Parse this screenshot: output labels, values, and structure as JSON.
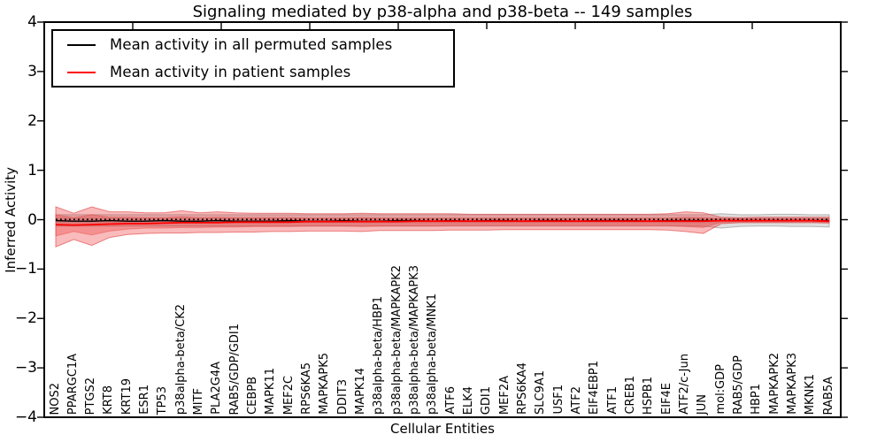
{
  "chart_data": {
    "type": "area",
    "title": "Signaling mediated by p38-alpha and p38-beta -- 149 samples",
    "xlabel": "Cellular Entities",
    "ylabel": "Inferred Activity",
    "ylim": [
      -4,
      4
    ],
    "y_tick_values": [
      4,
      3,
      2,
      1,
      0,
      -1,
      -2,
      -3,
      -4
    ],
    "y_tick_labels": [
      "4",
      "3",
      "2",
      "1",
      "0",
      "−1",
      "−2",
      "−3",
      "−4"
    ],
    "grid": false,
    "legend": {
      "position": "upper left",
      "items": [
        {
          "label": "Mean activity in all permuted samples",
          "color": "#000000"
        },
        {
          "label": "Mean activity in patient samples",
          "color": "#ff0000"
        }
      ]
    },
    "categories": [
      "NOS2",
      "PPARGC1A",
      "PTGS2",
      "KRT8",
      "KRT19",
      "ESR1",
      "TP53",
      "p38alpha-beta/CK2",
      "MITF",
      "PLA2G4A",
      "RAB5/GDP/GDI1",
      "CEBPB",
      "MAPK11",
      "MEF2C",
      "RPS6KA5",
      "MAPKAPK5",
      "DDIT3",
      "MAPK14",
      "p38alpha-beta/HBP1",
      "p38alpha-beta/MAPKAPK2",
      "p38alpha-beta/MAPKAPK3",
      "p38alpha-beta/MNK1",
      "ATF6",
      "ELK4",
      "GDI1",
      "MEF2A",
      "RPS6KA4",
      "SLC9A1",
      "USF1",
      "ATF2",
      "EIF4EBP1",
      "ATF1",
      "CREB1",
      "HSPB1",
      "EIF4E",
      "ATF2/c-Jun",
      "JUN",
      "mol:GDP",
      "RAB5/GDP",
      "HBP1",
      "MAPKAPK2",
      "MAPKAPK3",
      "MKNK1",
      "RAB5A"
    ],
    "bands": [
      {
        "name": "permuted-spread-outer",
        "fill": "rgba(0,0,0,0.13)",
        "edge": "rgba(110,110,110,0.45)",
        "upper": [
          0.1,
          0.1,
          0.1,
          0.1,
          0.1,
          0.1,
          0.1,
          0.1,
          0.1,
          0.1,
          0.1,
          0.1,
          0.1,
          0.1,
          0.1,
          0.1,
          0.1,
          0.1,
          0.1,
          0.1,
          0.1,
          0.1,
          0.1,
          0.1,
          0.1,
          0.1,
          0.1,
          0.1,
          0.1,
          0.1,
          0.1,
          0.1,
          0.1,
          0.1,
          0.1,
          0.1,
          0.1,
          0.12,
          0.1,
          0.1,
          0.11,
          0.11,
          0.1,
          0.1
        ],
        "lower": [
          -0.13,
          -0.13,
          -0.13,
          -0.13,
          -0.13,
          -0.13,
          -0.13,
          -0.13,
          -0.13,
          -0.13,
          -0.13,
          -0.13,
          -0.13,
          -0.13,
          -0.13,
          -0.13,
          -0.13,
          -0.13,
          -0.13,
          -0.13,
          -0.13,
          -0.13,
          -0.13,
          -0.13,
          -0.13,
          -0.13,
          -0.13,
          -0.13,
          -0.13,
          -0.13,
          -0.13,
          -0.13,
          -0.13,
          -0.13,
          -0.13,
          -0.13,
          -0.13,
          -0.17,
          -0.14,
          -0.13,
          -0.13,
          -0.14,
          -0.14,
          -0.15
        ]
      },
      {
        "name": "permuted-spread-inner",
        "fill": "rgba(0,0,0,0.09)",
        "edge": "rgba(110,110,110,0.0)",
        "upper_constant": 0.05,
        "lower_constant": -0.07
      },
      {
        "name": "patient-spread-outer",
        "fill": "rgba(235,45,45,0.32)",
        "edge": "rgba(225,60,60,0.6)",
        "upper": [
          0.26,
          0.13,
          0.26,
          0.16,
          0.16,
          0.14,
          0.14,
          0.18,
          0.14,
          0.16,
          0.14,
          0.13,
          0.13,
          0.13,
          0.12,
          0.12,
          0.12,
          0.13,
          0.12,
          0.12,
          0.12,
          0.12,
          0.12,
          0.11,
          0.11,
          0.11,
          0.11,
          0.11,
          0.11,
          0.11,
          0.11,
          0.11,
          0.11,
          0.11,
          0.12,
          0.16,
          0.14,
          0.05,
          0.04,
          0.05,
          0.05,
          0.05,
          0.05,
          0.05
        ],
        "lower": [
          -0.55,
          -0.4,
          -0.52,
          -0.36,
          -0.3,
          -0.28,
          -0.27,
          -0.27,
          -0.26,
          -0.26,
          -0.25,
          -0.25,
          -0.24,
          -0.24,
          -0.23,
          -0.23,
          -0.23,
          -0.24,
          -0.22,
          -0.22,
          -0.22,
          -0.22,
          -0.21,
          -0.21,
          -0.21,
          -0.2,
          -0.2,
          -0.2,
          -0.2,
          -0.2,
          -0.2,
          -0.2,
          -0.2,
          -0.2,
          -0.21,
          -0.24,
          -0.28,
          -0.08,
          -0.06,
          -0.06,
          -0.06,
          -0.06,
          -0.06,
          -0.07
        ]
      },
      {
        "name": "patient-spread-inner",
        "fill": "rgba(235,45,45,0.30)",
        "edge": "rgba(230,70,70,0.45)",
        "upper": [
          0.1,
          0.04,
          0.1,
          0.05,
          0.05,
          0.04,
          0.04,
          0.06,
          0.04,
          0.05,
          0.04,
          0.04,
          0.04,
          0.04,
          0.03,
          0.03,
          0.03,
          0.04,
          0.03,
          0.03,
          0.03,
          0.03,
          0.03,
          0.03,
          0.03,
          0.03,
          0.03,
          0.03,
          0.03,
          0.03,
          0.03,
          0.03,
          0.03,
          0.03,
          0.03,
          0.05,
          0.04,
          0.02,
          0.02,
          0.02,
          0.02,
          0.02,
          0.02,
          0.02
        ],
        "lower": [
          -0.33,
          -0.24,
          -0.31,
          -0.23,
          -0.19,
          -0.17,
          -0.17,
          -0.16,
          -0.16,
          -0.15,
          -0.15,
          -0.14,
          -0.14,
          -0.14,
          -0.13,
          -0.13,
          -0.13,
          -0.14,
          -0.13,
          -0.13,
          -0.13,
          -0.13,
          -0.12,
          -0.12,
          -0.12,
          -0.12,
          -0.12,
          -0.12,
          -0.12,
          -0.12,
          -0.12,
          -0.12,
          -0.12,
          -0.12,
          -0.12,
          -0.14,
          -0.16,
          -0.05,
          -0.04,
          -0.04,
          -0.04,
          -0.04,
          -0.04,
          -0.05
        ]
      }
    ],
    "lines": [
      {
        "name": "zero-reference",
        "style": "dotted",
        "color": "#000000",
        "width": 1.8,
        "y_constant": 0.005
      },
      {
        "name": "mean-permuted",
        "label": "Mean activity in all permuted samples",
        "style": "solid",
        "color": "#000000",
        "width": 1.4,
        "values": [
          -0.02,
          -0.03,
          -0.03,
          -0.02,
          -0.03,
          -0.03,
          -0.02,
          -0.03,
          -0.03,
          -0.02,
          -0.03,
          -0.03,
          -0.03,
          -0.02,
          -0.03,
          -0.03,
          -0.02,
          -0.03,
          -0.03,
          -0.02,
          -0.02,
          -0.03,
          -0.02,
          -0.03,
          -0.02,
          -0.02,
          -0.03,
          -0.02,
          -0.02,
          -0.03,
          -0.02,
          -0.02,
          -0.02,
          -0.03,
          -0.02,
          -0.02,
          -0.02,
          -0.02,
          -0.02,
          -0.02,
          -0.02,
          -0.02,
          -0.02,
          -0.02
        ]
      },
      {
        "name": "mean-patient",
        "label": "Mean activity in patient samples",
        "style": "solid",
        "color": "#ff0000",
        "width": 1.8,
        "values": [
          -0.1,
          -0.11,
          -0.1,
          -0.09,
          -0.08,
          -0.08,
          -0.07,
          -0.06,
          -0.06,
          -0.06,
          -0.05,
          -0.05,
          -0.05,
          -0.05,
          -0.04,
          -0.04,
          -0.04,
          -0.04,
          -0.04,
          -0.04,
          -0.03,
          -0.03,
          -0.03,
          -0.03,
          -0.03,
          -0.03,
          -0.03,
          -0.03,
          -0.03,
          -0.03,
          -0.03,
          -0.03,
          -0.03,
          -0.03,
          -0.03,
          -0.03,
          -0.03,
          -0.02,
          -0.02,
          -0.02,
          -0.02,
          -0.02,
          -0.02,
          -0.03
        ]
      }
    ]
  }
}
